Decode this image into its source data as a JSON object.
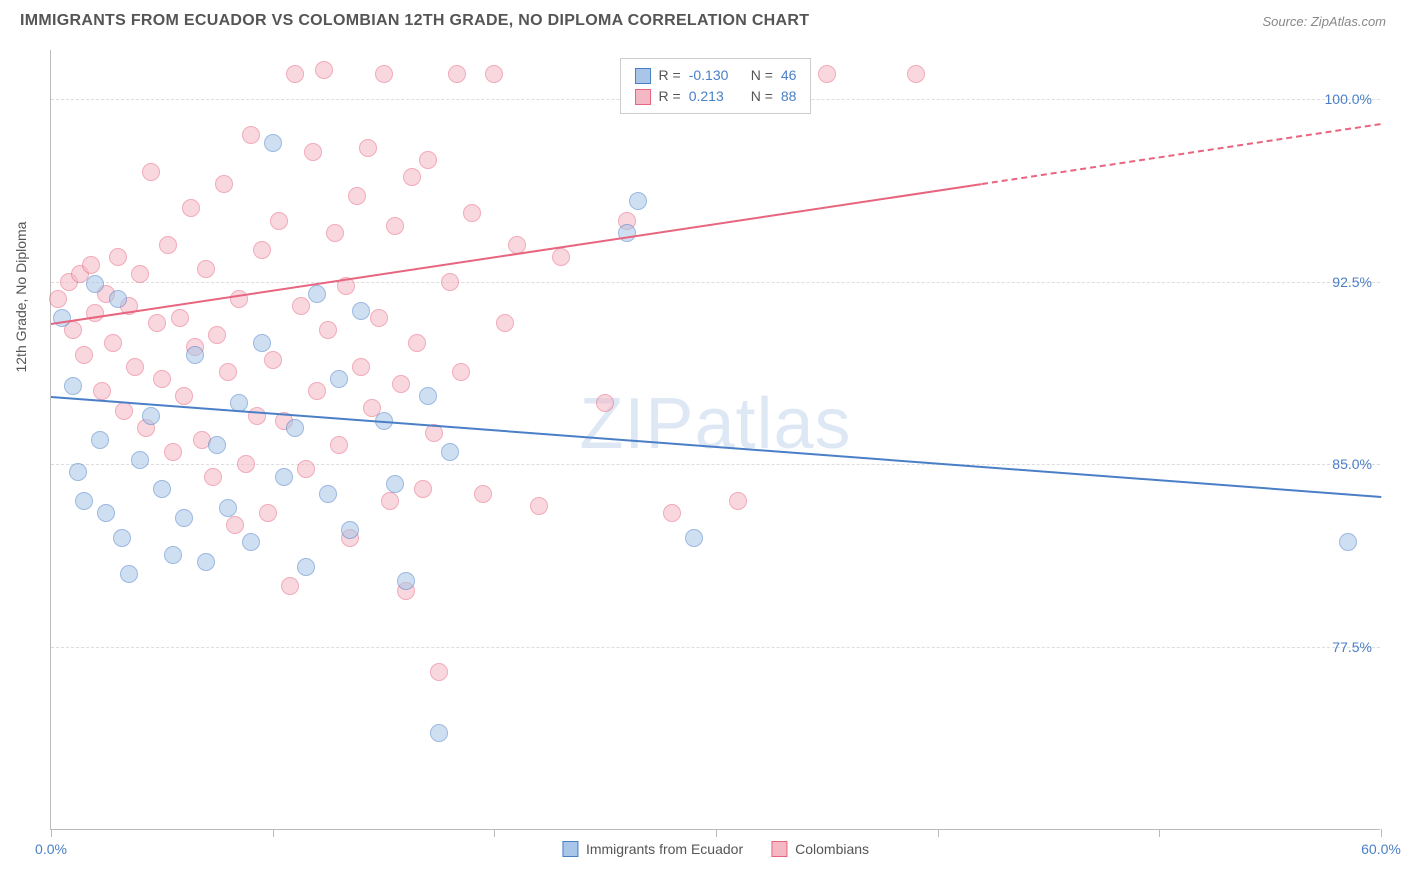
{
  "header": {
    "title": "IMMIGRANTS FROM ECUADOR VS COLOMBIAN 12TH GRADE, NO DIPLOMA CORRELATION CHART",
    "source": "Source: ZipAtlas.com"
  },
  "watermark": "ZIPatlas",
  "chart": {
    "type": "scatter",
    "y_axis_label": "12th Grade, No Diploma",
    "xlim": [
      0,
      60
    ],
    "ylim": [
      70,
      102
    ],
    "x_ticks": [
      0,
      10,
      20,
      30,
      40,
      50,
      60
    ],
    "x_tick_labels": {
      "0": "0.0%",
      "60": "60.0%"
    },
    "y_ticks": [
      77.5,
      85.0,
      92.5,
      100.0
    ],
    "y_tick_labels": [
      "77.5%",
      "85.0%",
      "92.5%",
      "100.0%"
    ],
    "grid_color": "#dddddd",
    "axis_color": "#bbbbbb",
    "background_color": "#ffffff",
    "series": [
      {
        "name": "Immigrants from Ecuador",
        "color_fill": "#a8c6e8",
        "color_stroke": "#4a7fc7",
        "R": "-0.130",
        "N": "46",
        "trend": {
          "x1": 0,
          "y1": 87.8,
          "x2": 60,
          "y2": 83.7,
          "dash_from_x": null
        },
        "points": [
          [
            0.5,
            91.0
          ],
          [
            1.0,
            88.2
          ],
          [
            1.2,
            84.7
          ],
          [
            1.5,
            83.5
          ],
          [
            2.0,
            92.4
          ],
          [
            2.2,
            86.0
          ],
          [
            2.5,
            83.0
          ],
          [
            3.0,
            91.8
          ],
          [
            3.2,
            82.0
          ],
          [
            3.5,
            80.5
          ],
          [
            4.0,
            85.2
          ],
          [
            4.5,
            87.0
          ],
          [
            5.0,
            84.0
          ],
          [
            5.5,
            81.3
          ],
          [
            6.0,
            82.8
          ],
          [
            6.5,
            89.5
          ],
          [
            7.0,
            81.0
          ],
          [
            7.5,
            85.8
          ],
          [
            8.0,
            83.2
          ],
          [
            8.5,
            87.5
          ],
          [
            9.0,
            81.8
          ],
          [
            9.5,
            90.0
          ],
          [
            10.0,
            98.2
          ],
          [
            10.5,
            84.5
          ],
          [
            11.0,
            86.5
          ],
          [
            11.5,
            80.8
          ],
          [
            12.0,
            92.0
          ],
          [
            12.5,
            83.8
          ],
          [
            13.0,
            88.5
          ],
          [
            13.5,
            82.3
          ],
          [
            14.0,
            91.3
          ],
          [
            15.0,
            86.8
          ],
          [
            15.5,
            84.2
          ],
          [
            16.0,
            80.2
          ],
          [
            17.0,
            87.8
          ],
          [
            17.5,
            74.0
          ],
          [
            18.0,
            85.5
          ],
          [
            26.0,
            94.5
          ],
          [
            26.5,
            95.8
          ],
          [
            29.0,
            82.0
          ],
          [
            58.5,
            81.8
          ]
        ]
      },
      {
        "name": "Colombians",
        "color_fill": "#f4b8c5",
        "color_stroke": "#e8657f",
        "R": "0.213",
        "N": "88",
        "trend": {
          "x1": 0,
          "y1": 90.8,
          "x2": 60,
          "y2": 99.0,
          "dash_from_x": 42
        },
        "points": [
          [
            0.3,
            91.8
          ],
          [
            0.8,
            92.5
          ],
          [
            1.0,
            90.5
          ],
          [
            1.3,
            92.8
          ],
          [
            1.5,
            89.5
          ],
          [
            1.8,
            93.2
          ],
          [
            2.0,
            91.2
          ],
          [
            2.3,
            88.0
          ],
          [
            2.5,
            92.0
          ],
          [
            2.8,
            90.0
          ],
          [
            3.0,
            93.5
          ],
          [
            3.3,
            87.2
          ],
          [
            3.5,
            91.5
          ],
          [
            3.8,
            89.0
          ],
          [
            4.0,
            92.8
          ],
          [
            4.3,
            86.5
          ],
          [
            4.5,
            97.0
          ],
          [
            4.8,
            90.8
          ],
          [
            5.0,
            88.5
          ],
          [
            5.3,
            94.0
          ],
          [
            5.5,
            85.5
          ],
          [
            5.8,
            91.0
          ],
          [
            6.0,
            87.8
          ],
          [
            6.3,
            95.5
          ],
          [
            6.5,
            89.8
          ],
          [
            6.8,
            86.0
          ],
          [
            7.0,
            93.0
          ],
          [
            7.3,
            84.5
          ],
          [
            7.5,
            90.3
          ],
          [
            7.8,
            96.5
          ],
          [
            8.0,
            88.8
          ],
          [
            8.3,
            82.5
          ],
          [
            8.5,
            91.8
          ],
          [
            8.8,
            85.0
          ],
          [
            9.0,
            98.5
          ],
          [
            9.3,
            87.0
          ],
          [
            9.5,
            93.8
          ],
          [
            9.8,
            83.0
          ],
          [
            10.0,
            89.3
          ],
          [
            10.3,
            95.0
          ],
          [
            10.5,
            86.8
          ],
          [
            10.8,
            80.0
          ],
          [
            11.0,
            101.0
          ],
          [
            11.3,
            91.5
          ],
          [
            11.5,
            84.8
          ],
          [
            11.8,
            97.8
          ],
          [
            12.0,
            88.0
          ],
          [
            12.3,
            101.2
          ],
          [
            12.5,
            90.5
          ],
          [
            12.8,
            94.5
          ],
          [
            13.0,
            85.8
          ],
          [
            13.3,
            92.3
          ],
          [
            13.5,
            82.0
          ],
          [
            13.8,
            96.0
          ],
          [
            14.0,
            89.0
          ],
          [
            14.3,
            98.0
          ],
          [
            14.5,
            87.3
          ],
          [
            14.8,
            91.0
          ],
          [
            15.0,
            101.0
          ],
          [
            15.3,
            83.5
          ],
          [
            15.5,
            94.8
          ],
          [
            15.8,
            88.3
          ],
          [
            16.0,
            79.8
          ],
          [
            16.3,
            96.8
          ],
          [
            16.5,
            90.0
          ],
          [
            16.8,
            84.0
          ],
          [
            17.0,
            97.5
          ],
          [
            17.3,
            86.3
          ],
          [
            17.5,
            76.5
          ],
          [
            18.0,
            92.5
          ],
          [
            18.3,
            101.0
          ],
          [
            18.5,
            88.8
          ],
          [
            19.0,
            95.3
          ],
          [
            19.5,
            83.8
          ],
          [
            20.0,
            101.0
          ],
          [
            20.5,
            90.8
          ],
          [
            21.0,
            94.0
          ],
          [
            22.0,
            83.3
          ],
          [
            23.0,
            93.5
          ],
          [
            25.0,
            87.5
          ],
          [
            26.0,
            95.0
          ],
          [
            28.0,
            83.0
          ],
          [
            31.0,
            83.5
          ],
          [
            35.0,
            101.0
          ],
          [
            39.0,
            101.0
          ]
        ]
      }
    ],
    "legend_top": {
      "rows": [
        {
          "swatch_fill": "#a8c6e8",
          "swatch_stroke": "#4a7fc7",
          "r_label": "R =",
          "r_val": "-0.130",
          "n_label": "N =",
          "n_val": "46"
        },
        {
          "swatch_fill": "#f4b8c5",
          "swatch_stroke": "#e8657f",
          "r_label": "R =",
          "r_val": " 0.213",
          "n_label": "N =",
          "n_val": "88"
        }
      ]
    },
    "legend_bottom": [
      {
        "swatch_fill": "#a8c6e8",
        "swatch_stroke": "#4a7fc7",
        "label": "Immigrants from Ecuador"
      },
      {
        "swatch_fill": "#f4b8c5",
        "swatch_stroke": "#e8657f",
        "label": "Colombians"
      }
    ]
  }
}
